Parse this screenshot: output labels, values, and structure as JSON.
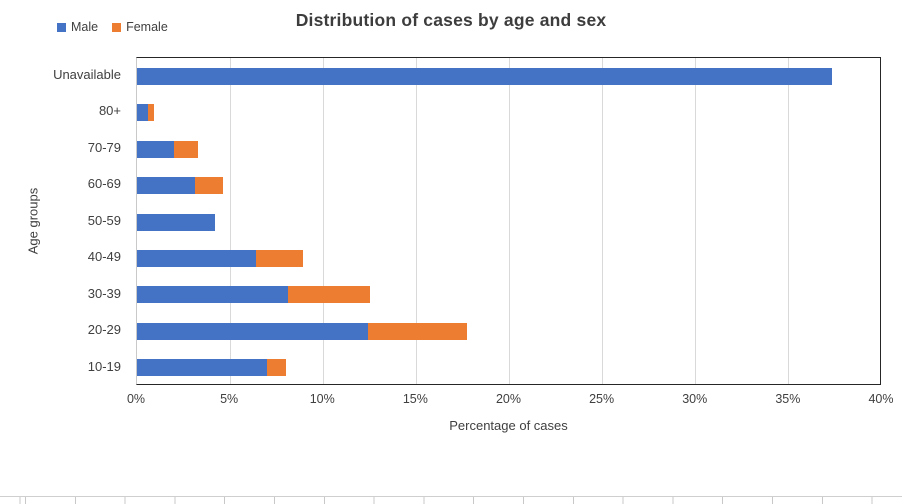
{
  "chart_data": {
    "type": "bar",
    "orientation": "horizontal",
    "stacked": true,
    "title": "Distribution of cases by age and sex",
    "xlabel": "Percentage of cases",
    "ylabel": "Age groups",
    "categories": [
      "Unavailable",
      "80+",
      "70-79",
      "60-69",
      "50-59",
      "40-49",
      "30-39",
      "20-29",
      "10-19"
    ],
    "series": [
      {
        "name": "Male",
        "color": "#4472C4",
        "values": [
          37.3,
          0.6,
          2.0,
          3.1,
          4.2,
          6.4,
          8.1,
          12.4,
          7.0
        ]
      },
      {
        "name": "Female",
        "color": "#ED7D31",
        "values": [
          0,
          0.3,
          1.3,
          1.5,
          0,
          2.5,
          4.4,
          5.3,
          1.0
        ]
      }
    ],
    "xlim": [
      0,
      40
    ],
    "x_ticks": [
      "0%",
      "5%",
      "10%",
      "15%",
      "20%",
      "25%",
      "30%",
      "35%",
      "40%"
    ],
    "grid": true,
    "legend_position": "top-left",
    "colors": {
      "grid": "#d9d9d9",
      "axis_border": "#262626",
      "text": "#404040"
    }
  }
}
